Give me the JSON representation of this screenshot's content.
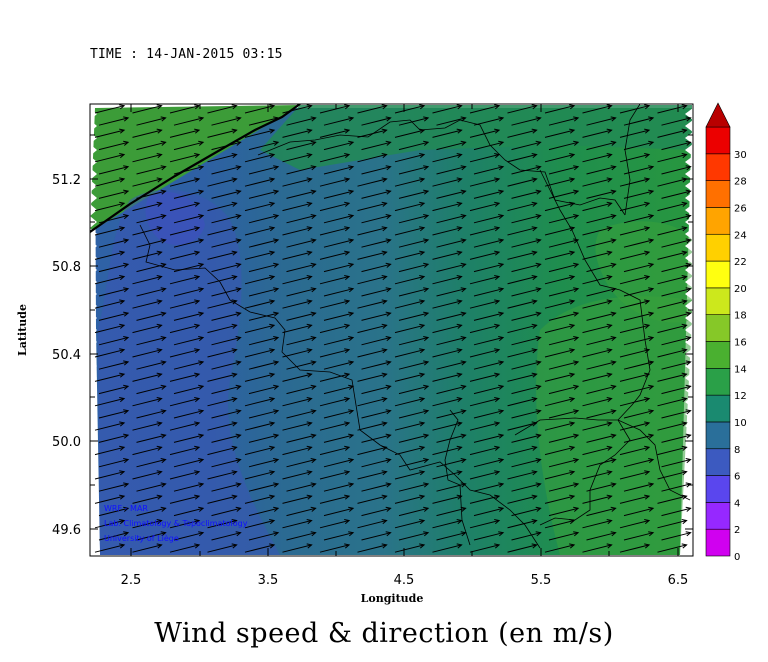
{
  "time_label": "TIME : 14-JAN-2015 03:15",
  "bottom_title": "Wind speed & direction (en m/s)",
  "axes": {
    "xlabel": "Longitude",
    "ylabel": "Latitude",
    "x_ticks": [
      "2.5",
      "3.5",
      "4.5",
      "5.5",
      "6.5"
    ],
    "y_ticks": [
      "49.6",
      "50.0",
      "50.4",
      "50.8",
      "51.2"
    ]
  },
  "credits": {
    "line1": "WRF - MAR",
    "line2": "Lab. Climatology & Topoclimatology",
    "line3": "University of Liège"
  },
  "colorbar": {
    "labels": [
      "0",
      "2",
      "4",
      "6",
      "8",
      "10",
      "12",
      "14",
      "16",
      "18",
      "20",
      "22",
      "24",
      "26",
      "28",
      "30"
    ],
    "colors": [
      "#d000f0",
      "#9628ff",
      "#5a46ee",
      "#3c5ac0",
      "#2a6f9a",
      "#1a8a70",
      "#2aa048",
      "#4ab030",
      "#86c828",
      "#cce81c",
      "#ffff10",
      "#ffd000",
      "#ffa400",
      "#ff7000",
      "#ff3800",
      "#ec0000"
    ],
    "top_arrow_color": "#b80000"
  },
  "chart_data": {
    "type": "heatmap",
    "title": "",
    "xlabel": "Longitude",
    "ylabel": "Latitude",
    "xlim": [
      2.2,
      6.6
    ],
    "ylim": [
      49.46,
      51.5
    ],
    "x_ticks": [
      2.5,
      3.5,
      4.5,
      5.5,
      6.5
    ],
    "y_ticks": [
      49.6,
      50.0,
      50.4,
      50.8,
      51.2
    ],
    "variable": "wind speed (m/s) with direction vectors",
    "color_scale": [
      0,
      30
    ],
    "wind_direction": "from west-southwest (vectors pointing east-northeast)",
    "speed_zones": [
      {
        "region": "north-west coastal strip (North Sea)",
        "speed": 12
      },
      {
        "region": "west / south-west plains",
        "speed": 7
      },
      {
        "region": "central",
        "speed": 8
      },
      {
        "region": "east highlands",
        "speed": 11
      }
    ]
  }
}
